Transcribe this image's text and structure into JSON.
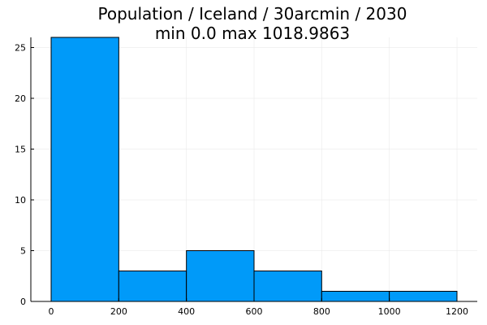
{
  "chart_data": {
    "type": "bar",
    "title_lines": [
      "Population / Iceland / 30arcmin / 2030",
      "min 0.0  max 1018.9863"
    ],
    "bins": [
      {
        "x0": 0,
        "x1": 200,
        "count": 26
      },
      {
        "x0": 200,
        "x1": 400,
        "count": 3
      },
      {
        "x0": 400,
        "x1": 600,
        "count": 5
      },
      {
        "x0": 600,
        "x1": 800,
        "count": 3
      },
      {
        "x0": 800,
        "x1": 1000,
        "count": 1
      },
      {
        "x0": 1000,
        "x1": 1200,
        "count": 1
      }
    ],
    "x_ticks": [
      0,
      200,
      400,
      600,
      800,
      1000,
      1200
    ],
    "y_ticks": [
      0,
      5,
      10,
      15,
      20,
      25
    ],
    "xlim": [
      -60,
      1260
    ],
    "ylim": [
      0,
      26
    ],
    "xlabel": "",
    "ylabel": "",
    "grid": true,
    "bar_color": "#009af9",
    "edge_color": "#000000"
  }
}
